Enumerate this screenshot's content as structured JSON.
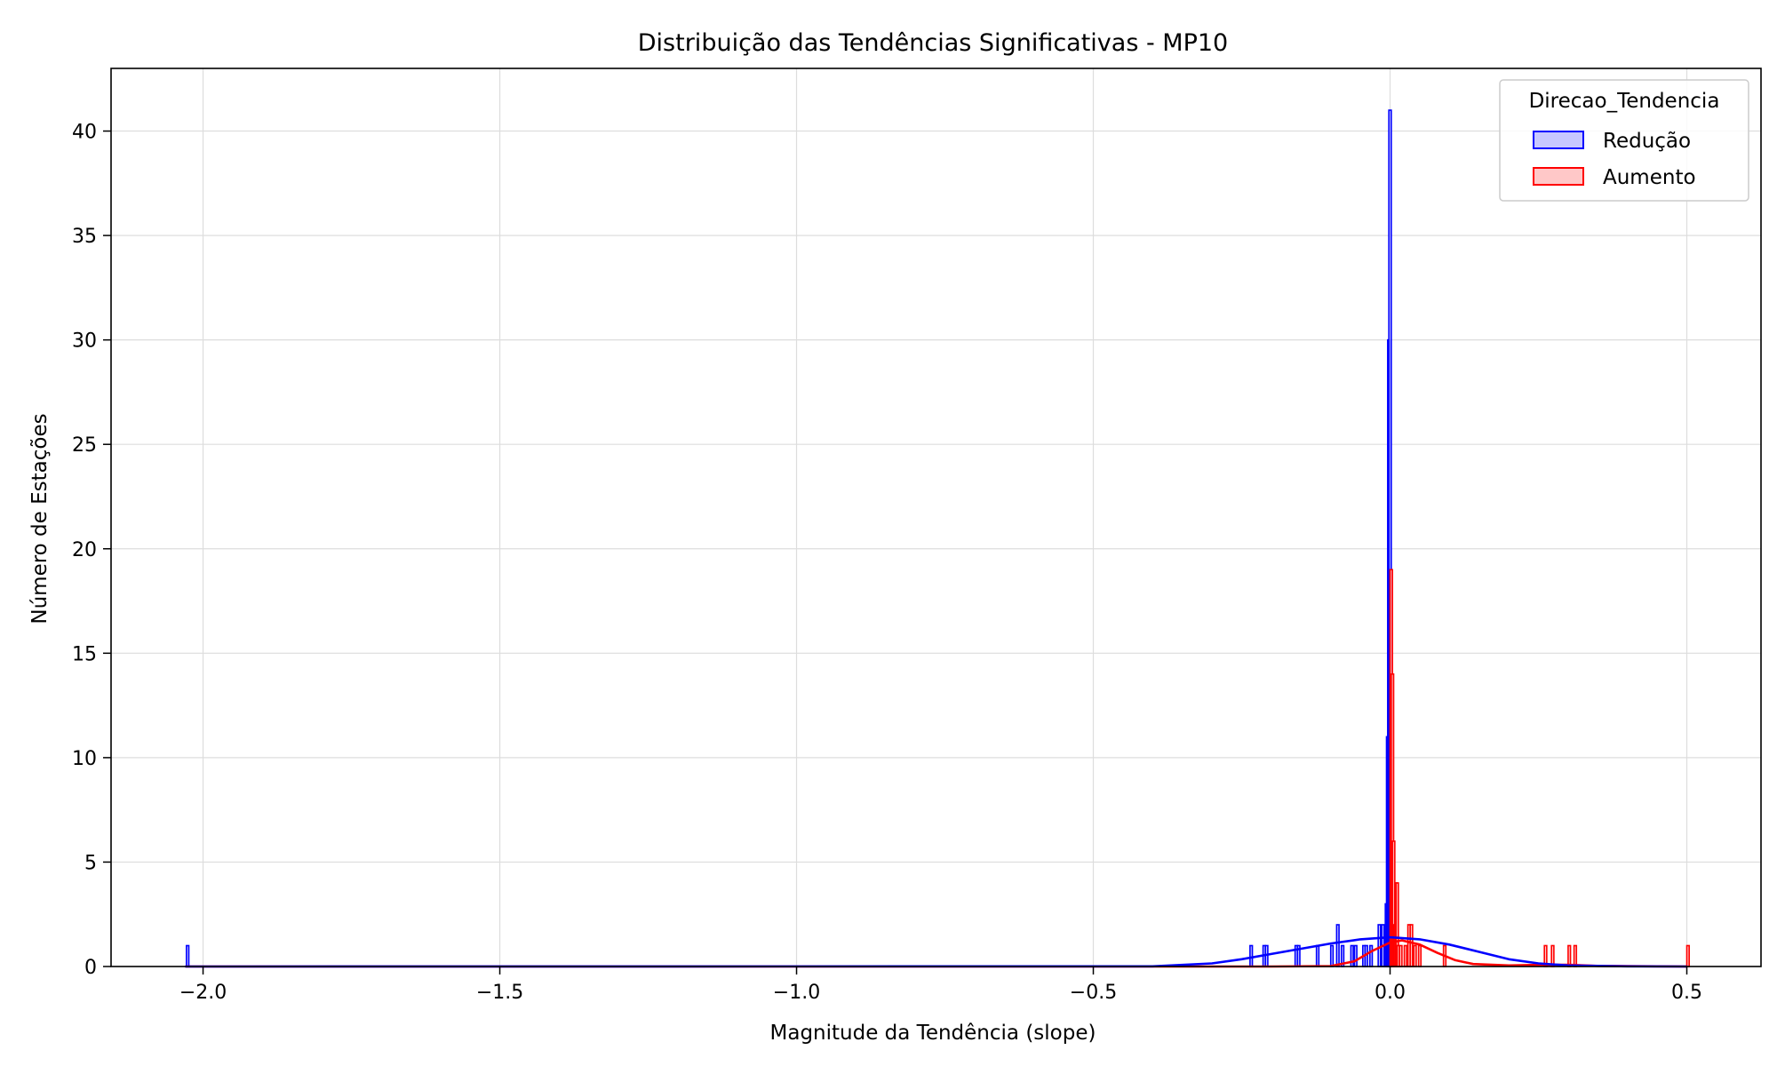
{
  "chart_data": {
    "type": "histogram",
    "title": "Distribuição das Tendências Significativas - MP10",
    "xlabel": "Magnitude da Tendência (slope)",
    "ylabel": "Número de Estações",
    "xlim": [
      -2.155,
      0.625
    ],
    "ylim": [
      0,
      43
    ],
    "xticks": [
      -2.0,
      -1.5,
      -1.0,
      -0.5,
      0.0,
      0.5
    ],
    "xtick_labels": [
      "−2.0",
      "−1.5",
      "−1.0",
      "−0.5",
      "0.0",
      "0.5"
    ],
    "yticks": [
      0,
      5,
      10,
      15,
      20,
      25,
      30,
      35,
      40
    ],
    "ytick_labels": [
      "0",
      "5",
      "10",
      "15",
      "20",
      "25",
      "30",
      "35",
      "40"
    ],
    "grid": true,
    "legend": {
      "title": "Direcao_Tendencia",
      "placement": "top-right",
      "entries": [
        "Redução",
        "Aumento"
      ]
    },
    "series": [
      {
        "name": "Redução",
        "color": "#0000ff",
        "fill": "#c8c8ff",
        "bin_width": 0.004,
        "bins": [
          [
            -2.028,
            1
          ],
          [
            -0.236,
            1
          ],
          [
            -0.214,
            1
          ],
          [
            -0.21,
            1
          ],
          [
            -0.16,
            1
          ],
          [
            -0.156,
            1
          ],
          [
            -0.124,
            1
          ],
          [
            -0.1,
            1
          ],
          [
            -0.09,
            2
          ],
          [
            -0.082,
            1
          ],
          [
            -0.066,
            1
          ],
          [
            -0.06,
            1
          ],
          [
            -0.046,
            1
          ],
          [
            -0.042,
            1
          ],
          [
            -0.034,
            1
          ],
          [
            -0.02,
            2
          ],
          [
            -0.014,
            2
          ],
          [
            -0.01,
            1
          ],
          [
            -0.008,
            3
          ],
          [
            -0.006,
            11
          ],
          [
            -0.004,
            30
          ],
          [
            -0.002,
            41
          ]
        ],
        "kde": [
          [
            -2.03,
            0
          ],
          [
            -0.4,
            0.01
          ],
          [
            -0.3,
            0.15
          ],
          [
            -0.25,
            0.35
          ],
          [
            -0.2,
            0.6
          ],
          [
            -0.15,
            0.85
          ],
          [
            -0.1,
            1.1
          ],
          [
            -0.05,
            1.3
          ],
          [
            0.0,
            1.4
          ],
          [
            0.05,
            1.3
          ],
          [
            0.1,
            1.05
          ],
          [
            0.15,
            0.7
          ],
          [
            0.2,
            0.35
          ],
          [
            0.25,
            0.15
          ],
          [
            0.3,
            0.05
          ],
          [
            0.4,
            0.01
          ],
          [
            0.5,
            0
          ]
        ]
      },
      {
        "name": "Aumento",
        "color": "#ff0000",
        "fill": "#ffc8c8",
        "bin_width": 0.004,
        "bins": [
          [
            0.0,
            19
          ],
          [
            0.002,
            14
          ],
          [
            0.004,
            6
          ],
          [
            0.006,
            2
          ],
          [
            0.008,
            4
          ],
          [
            0.01,
            4
          ],
          [
            0.012,
            1
          ],
          [
            0.016,
            1
          ],
          [
            0.024,
            1
          ],
          [
            0.03,
            2
          ],
          [
            0.034,
            2
          ],
          [
            0.04,
            1
          ],
          [
            0.048,
            1
          ],
          [
            0.09,
            1
          ],
          [
            0.26,
            1
          ],
          [
            0.272,
            1
          ],
          [
            0.3,
            1
          ],
          [
            0.31,
            1
          ],
          [
            0.5,
            1
          ]
        ],
        "kde": [
          [
            -2.03,
            0
          ],
          [
            -0.2,
            0
          ],
          [
            -0.1,
            0.02
          ],
          [
            -0.06,
            0.25
          ],
          [
            -0.03,
            0.75
          ],
          [
            0.0,
            1.15
          ],
          [
            0.02,
            1.25
          ],
          [
            0.05,
            1.05
          ],
          [
            0.08,
            0.65
          ],
          [
            0.11,
            0.3
          ],
          [
            0.14,
            0.12
          ],
          [
            0.2,
            0.05
          ],
          [
            0.26,
            0.08
          ],
          [
            0.3,
            0.08
          ],
          [
            0.35,
            0.03
          ],
          [
            0.45,
            0.01
          ],
          [
            0.5,
            0
          ]
        ]
      }
    ]
  }
}
